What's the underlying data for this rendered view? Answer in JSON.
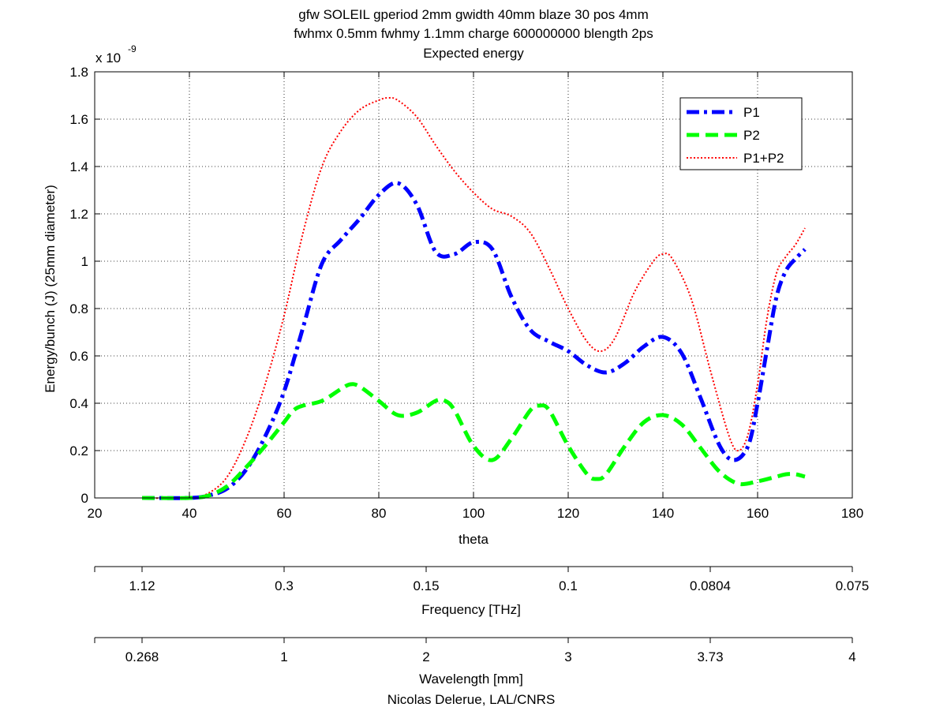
{
  "title_lines": [
    "gfw SOLEIL gperiod 2mm gwidth 40mm blaze 30 pos 4mm",
    "fwhmx 0.5mm fwhmy 1.1mm charge 600000000 blength 2ps",
    "Expected energy"
  ],
  "y_exponent_label": "x 10",
  "y_exponent_power": "-9",
  "footer": "Nicolas Delerue, LAL/CNRS",
  "chart_data": {
    "type": "line",
    "title": "gfw SOLEIL gperiod 2mm gwidth 40mm blaze 30 pos 4mm fwhmx 0.5mm fwhmy 1.1mm charge 600000000 blength 2ps Expected energy",
    "xlabel": "theta",
    "ylabel": "Energy/bunch (J)  (25mm diameter)",
    "y_scale_multiplier": "1e-9",
    "xlim": [
      20,
      180
    ],
    "ylim": [
      0,
      1.8
    ],
    "grid": true,
    "legend_position": "top-right",
    "xticks": [
      20,
      40,
      60,
      80,
      100,
      120,
      140,
      160,
      180
    ],
    "xtick_labels": [
      "20",
      "40",
      "60",
      "80",
      "100",
      "120",
      "140",
      "160",
      "180"
    ],
    "yticks": [
      0,
      0.2,
      0.4,
      0.6,
      0.8,
      1.0,
      1.2,
      1.4,
      1.6,
      1.8
    ],
    "ytick_labels": [
      "0",
      "0.2",
      "0.4",
      "0.6",
      "0.8",
      "1",
      "1.2",
      "1.4",
      "1.6",
      "1.8"
    ],
    "secondary_axes": [
      {
        "label": "Frequency [THz]",
        "tick_theta": [
          30,
          60,
          90,
          120,
          150,
          180
        ],
        "tick_labels": [
          "1.12",
          "0.3",
          "0.15",
          "0.1",
          "0.0804",
          "0.075"
        ]
      },
      {
        "label": "Wavelength [mm]",
        "tick_theta": [
          30,
          60,
          90,
          120,
          150,
          180
        ],
        "tick_labels": [
          "0.268",
          "1",
          "2",
          "3",
          "3.73",
          "4"
        ]
      }
    ],
    "series": [
      {
        "name": "P1",
        "color": "#0000ff",
        "style": "dash-dot",
        "x": [
          30,
          40,
          44,
          48,
          52,
          56,
          60,
          64,
          68,
          72,
          76,
          80,
          84,
          88,
          92,
          96,
          100,
          104,
          108,
          112,
          116,
          120,
          124,
          128,
          132,
          136,
          140,
          144,
          148,
          152,
          155,
          158,
          160,
          162,
          164,
          166,
          168,
          170
        ],
        "y": [
          0,
          0,
          0.01,
          0.04,
          0.12,
          0.26,
          0.45,
          0.72,
          0.99,
          1.09,
          1.18,
          1.28,
          1.33,
          1.24,
          1.04,
          1.03,
          1.08,
          1.05,
          0.85,
          0.71,
          0.66,
          0.62,
          0.56,
          0.53,
          0.57,
          0.64,
          0.68,
          0.61,
          0.42,
          0.22,
          0.16,
          0.22,
          0.4,
          0.63,
          0.85,
          0.96,
          1.01,
          1.05
        ]
      },
      {
        "name": "P2",
        "color": "#00ff00",
        "style": "dashed",
        "x": [
          30,
          40,
          44,
          48,
          52,
          56,
          60,
          62,
          64,
          68,
          72,
          74,
          76,
          80,
          84,
          88,
          92,
          94,
          96,
          100,
          104,
          108,
          112,
          114,
          116,
          120,
          124,
          126,
          128,
          132,
          136,
          140,
          144,
          148,
          152,
          156,
          160,
          164,
          166,
          168,
          170
        ],
        "y": [
          0,
          0,
          0.01,
          0.05,
          0.13,
          0.22,
          0.32,
          0.37,
          0.39,
          0.41,
          0.46,
          0.48,
          0.47,
          0.41,
          0.35,
          0.36,
          0.41,
          0.41,
          0.37,
          0.22,
          0.16,
          0.25,
          0.37,
          0.39,
          0.37,
          0.22,
          0.1,
          0.08,
          0.1,
          0.22,
          0.32,
          0.35,
          0.31,
          0.21,
          0.11,
          0.06,
          0.07,
          0.09,
          0.1,
          0.1,
          0.09
        ]
      },
      {
        "name": "P1+P2",
        "color": "#ff0000",
        "style": "dotted",
        "x": [
          30,
          40,
          44,
          48,
          52,
          56,
          60,
          64,
          68,
          72,
          76,
          80,
          82,
          84,
          88,
          92,
          96,
          100,
          104,
          108,
          112,
          116,
          120,
          124,
          127,
          130,
          134,
          138,
          140,
          142,
          146,
          150,
          154,
          156,
          158,
          160,
          162,
          164,
          166,
          168,
          170
        ],
        "y": [
          0,
          0,
          0.02,
          0.09,
          0.25,
          0.48,
          0.77,
          1.12,
          1.4,
          1.55,
          1.64,
          1.68,
          1.69,
          1.68,
          1.61,
          1.49,
          1.38,
          1.29,
          1.22,
          1.19,
          1.12,
          0.97,
          0.8,
          0.66,
          0.62,
          0.68,
          0.87,
          1.0,
          1.03,
          1.01,
          0.84,
          0.54,
          0.26,
          0.2,
          0.27,
          0.48,
          0.76,
          0.95,
          1.02,
          1.07,
          1.14
        ]
      }
    ]
  }
}
